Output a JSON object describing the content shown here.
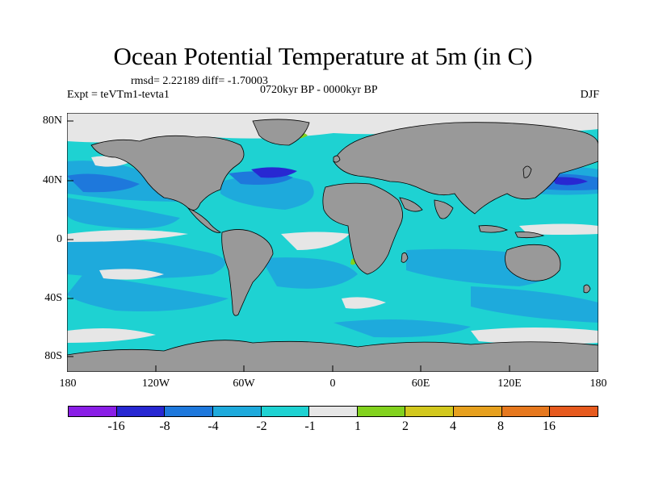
{
  "title": "Ocean Potential Temperature at 5m (in C)",
  "stats_line": "rmsd= 2.22189 diff= -1.70003",
  "experiment": "Expt = teVTm1-tevta1",
  "time_range": "0720kyr BP - 0000kyr BP",
  "season": "DJF",
  "y_axis_labels": [
    "80N",
    "40N",
    "0",
    "40S",
    "80S"
  ],
  "x_axis_labels": [
    "180",
    "120W",
    "60W",
    "0",
    "60E",
    "120E",
    "180"
  ],
  "colorbar": {
    "colors": [
      "#8a1ee6",
      "#2828d2",
      "#1e78dc",
      "#1eaadc",
      "#1ed2d2",
      "#e6e6e6",
      "#82d21e",
      "#d2c81e",
      "#e6a01e",
      "#e6781e",
      "#e65a1e"
    ],
    "labels": [
      "-16",
      "-8",
      "-4",
      "-2",
      "-1",
      "1",
      "2",
      "4",
      "8",
      "16"
    ]
  },
  "map_colors": {
    "land": "#999999",
    "ocean_base": "#1ed2d2",
    "neutral": "#e6e6e6",
    "cold_1": "#1eaadc",
    "cold_2": "#1e78dc",
    "cold_3": "#2828d2",
    "warm_1": "#82d21e"
  }
}
